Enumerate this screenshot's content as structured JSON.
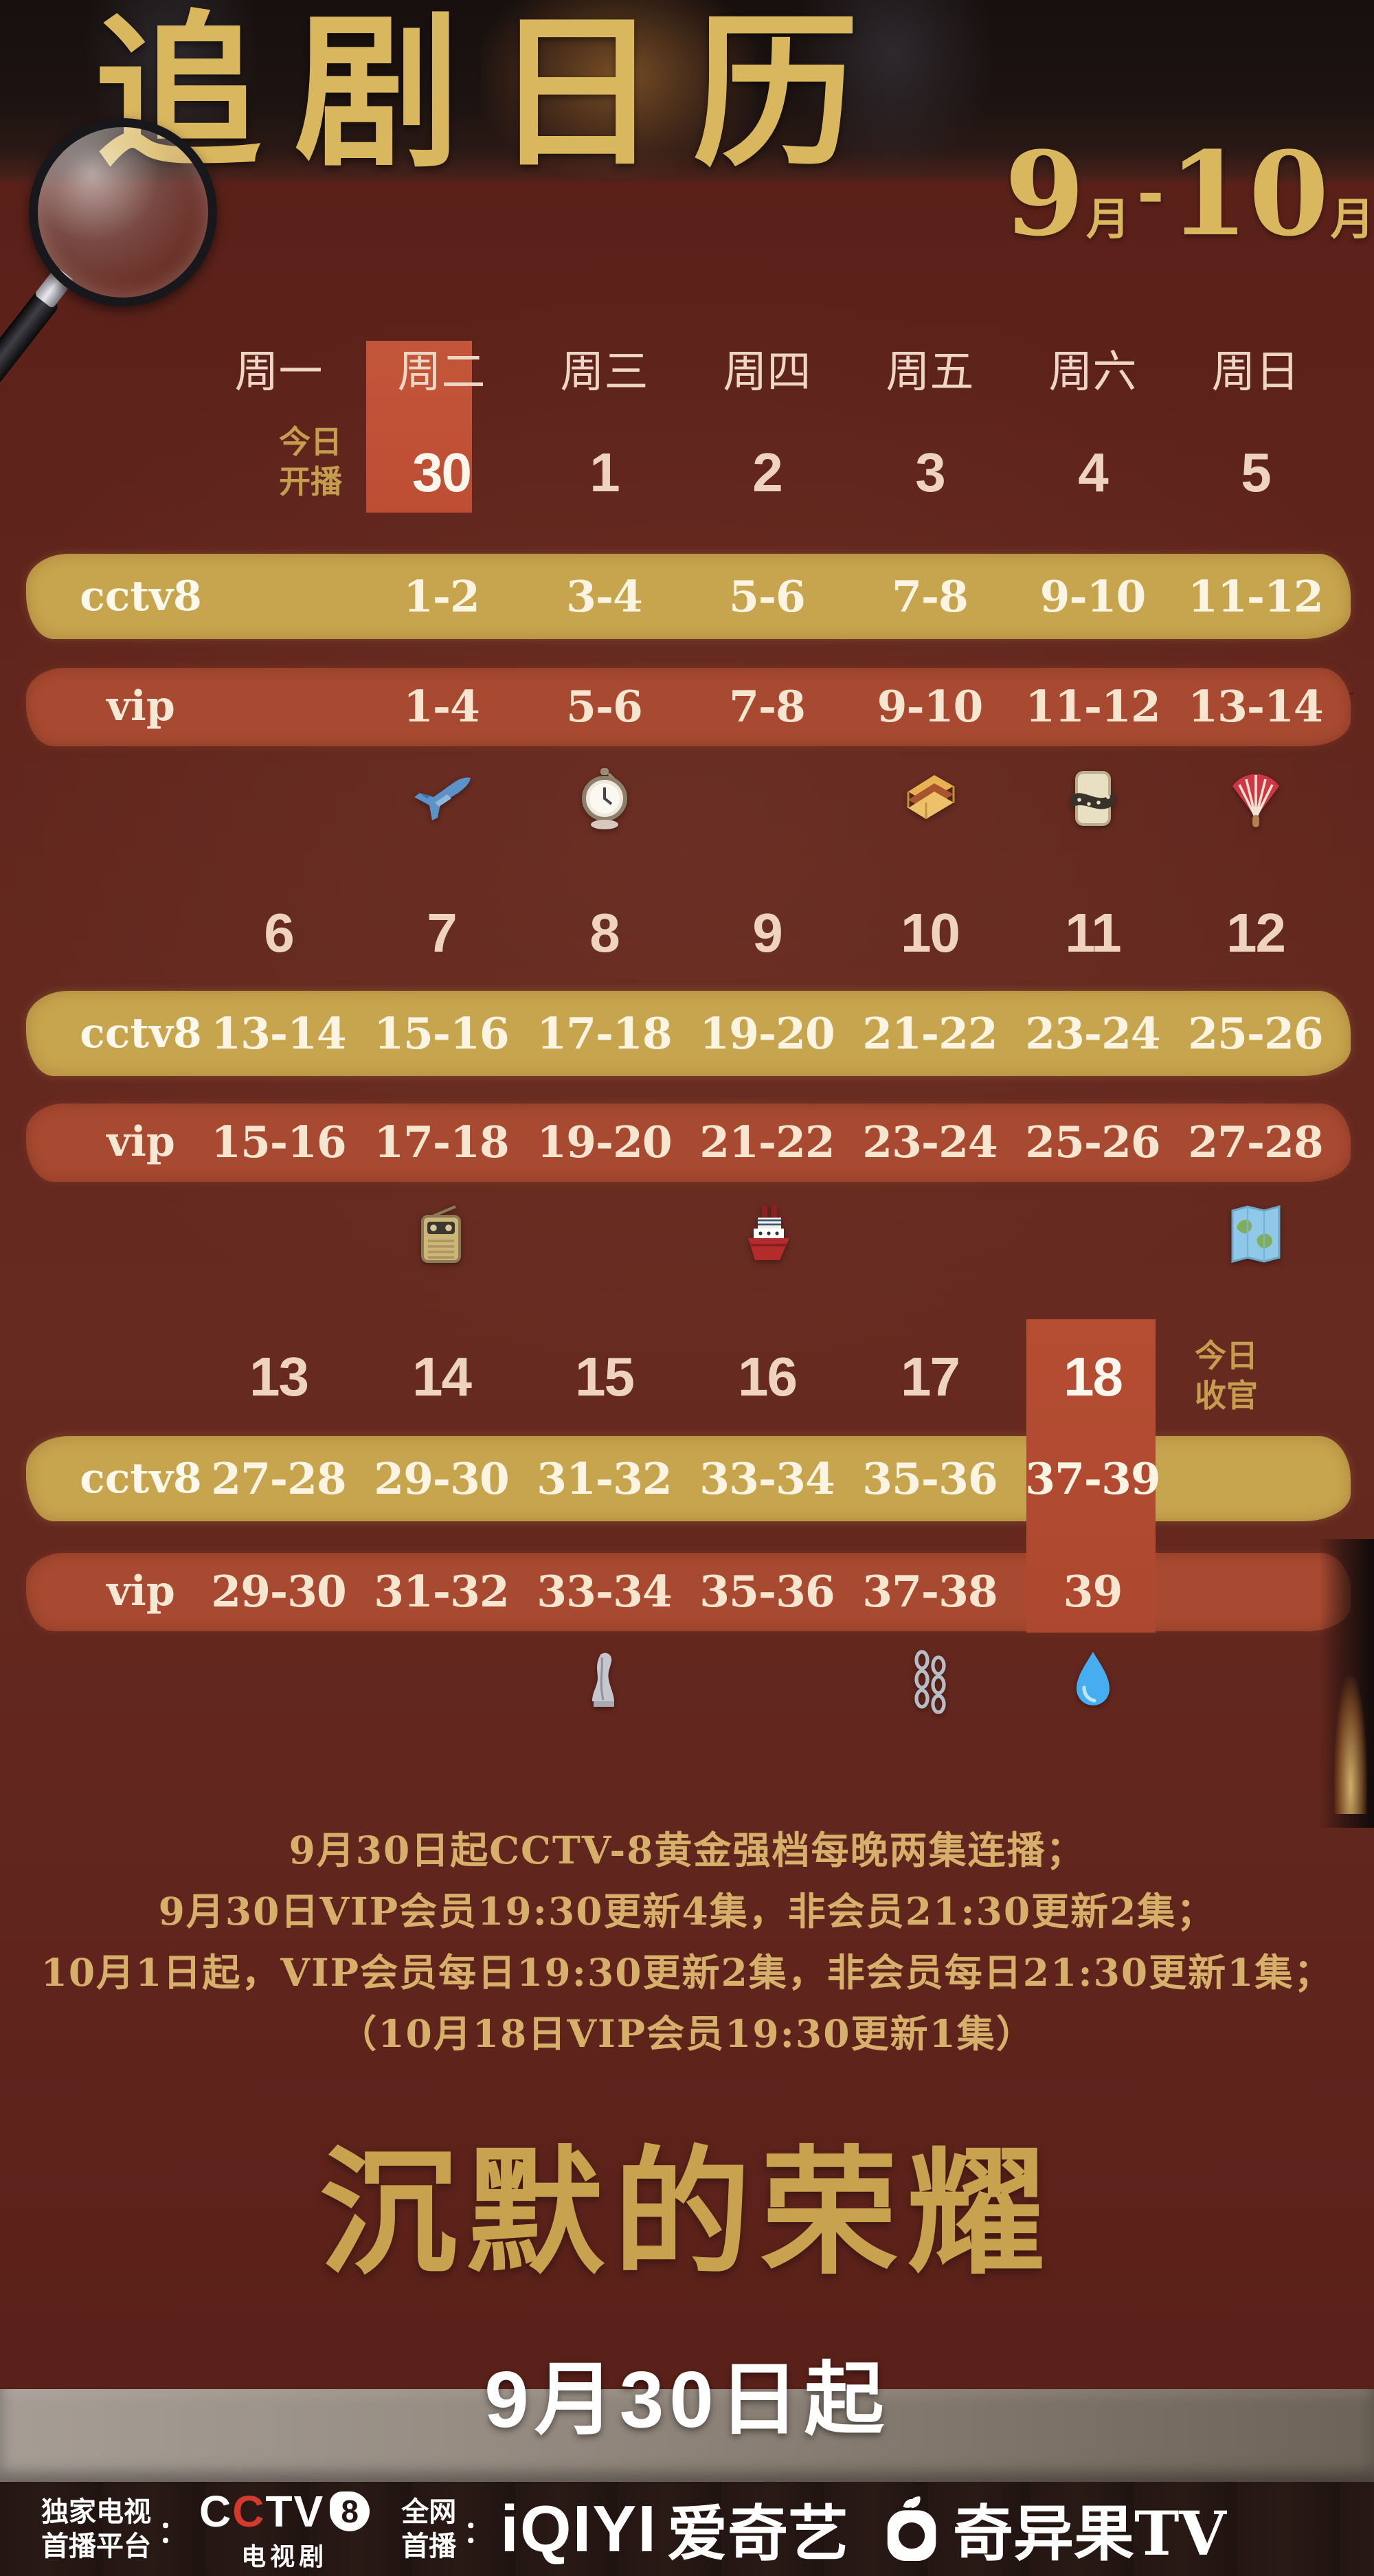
{
  "poster": {
    "title": "追剧日历",
    "date_range": {
      "from": "9",
      "from_unit": "月",
      "dash": "-",
      "to": "10",
      "to_unit": "月"
    },
    "weekdays": [
      "周一",
      "周二",
      "周三",
      "周四",
      "周五",
      "周六",
      "周日"
    ],
    "today_start_label": [
      "今日",
      "开播"
    ],
    "today_end_label": [
      "今日",
      "收官"
    ],
    "channel_labels": {
      "cctv8": "cctv8",
      "vip": "vip"
    },
    "weeks": [
      {
        "dates": [
          "",
          "30",
          "1",
          "2",
          "3",
          "4",
          "5"
        ],
        "cctv8": [
          "",
          "1-2",
          "3-4",
          "5-6",
          "7-8",
          "9-10",
          "11-12"
        ],
        "vip": [
          "",
          "1-4",
          "5-6",
          "7-8",
          "9-10",
          "11-12",
          "13-14"
        ],
        "icons": [
          "",
          "airplane",
          "pocket-watch",
          "",
          "sandwich",
          "film-roll",
          "folding-fan"
        ]
      },
      {
        "dates": [
          "6",
          "7",
          "8",
          "9",
          "10",
          "11",
          "12"
        ],
        "cctv8": [
          "13-14",
          "15-16",
          "17-18",
          "19-20",
          "21-22",
          "23-24",
          "25-26"
        ],
        "vip": [
          "15-16",
          "17-18",
          "19-20",
          "21-22",
          "23-24",
          "25-26",
          "27-28"
        ],
        "icons": [
          "",
          "radio",
          "",
          "steam-ship",
          "",
          "",
          "world-map"
        ]
      },
      {
        "dates": [
          "13",
          "14",
          "15",
          "16",
          "17",
          "18",
          ""
        ],
        "cctv8": [
          "27-28",
          "29-30",
          "31-32",
          "33-34",
          "35-36",
          "37-39",
          ""
        ],
        "vip": [
          "29-30",
          "31-32",
          "33-34",
          "35-36",
          "37-38",
          "39",
          ""
        ],
        "icons": [
          "",
          "",
          "chess-piece",
          "",
          "chains",
          "water-drop",
          ""
        ]
      }
    ],
    "notes": [
      "9月30日起CCTV-8黄金强档每晚两集连播；",
      "9月30日VIP会员19:30更新4集，非会员21:30更新2集；",
      "10月1日起，VIP会员每日19:30更新2集，非会员每日21:30更新1集；",
      "（10月18日VIP会员19:30更新1集）"
    ],
    "show_title": "沉默的荣耀",
    "premiere_date": "9月30日起",
    "footer": {
      "exclusive_label_line1": "独家电视",
      "exclusive_label_line2": "首播平台",
      "colon": "：",
      "cctv": {
        "c1": "C",
        "c2": "C",
        "rest": "TV",
        "num": "8",
        "sub": "电视剧"
      },
      "network_label_line1": "全网",
      "network_label_line2": "首播",
      "iqiyi": "iQIYI",
      "iqiyi_cn": "爱奇艺",
      "kiwi": "奇异果TV"
    },
    "colors": {
      "background_maroon": "#5e231b",
      "accent_gold": "#d9b75f",
      "band_gold": "#c7a54e",
      "band_red": "#a84a31",
      "highlight_red": "#c05138",
      "cream_text": "#eed3c0",
      "note_gold": "#d6b06a",
      "footer_bg": "#241613"
    }
  }
}
